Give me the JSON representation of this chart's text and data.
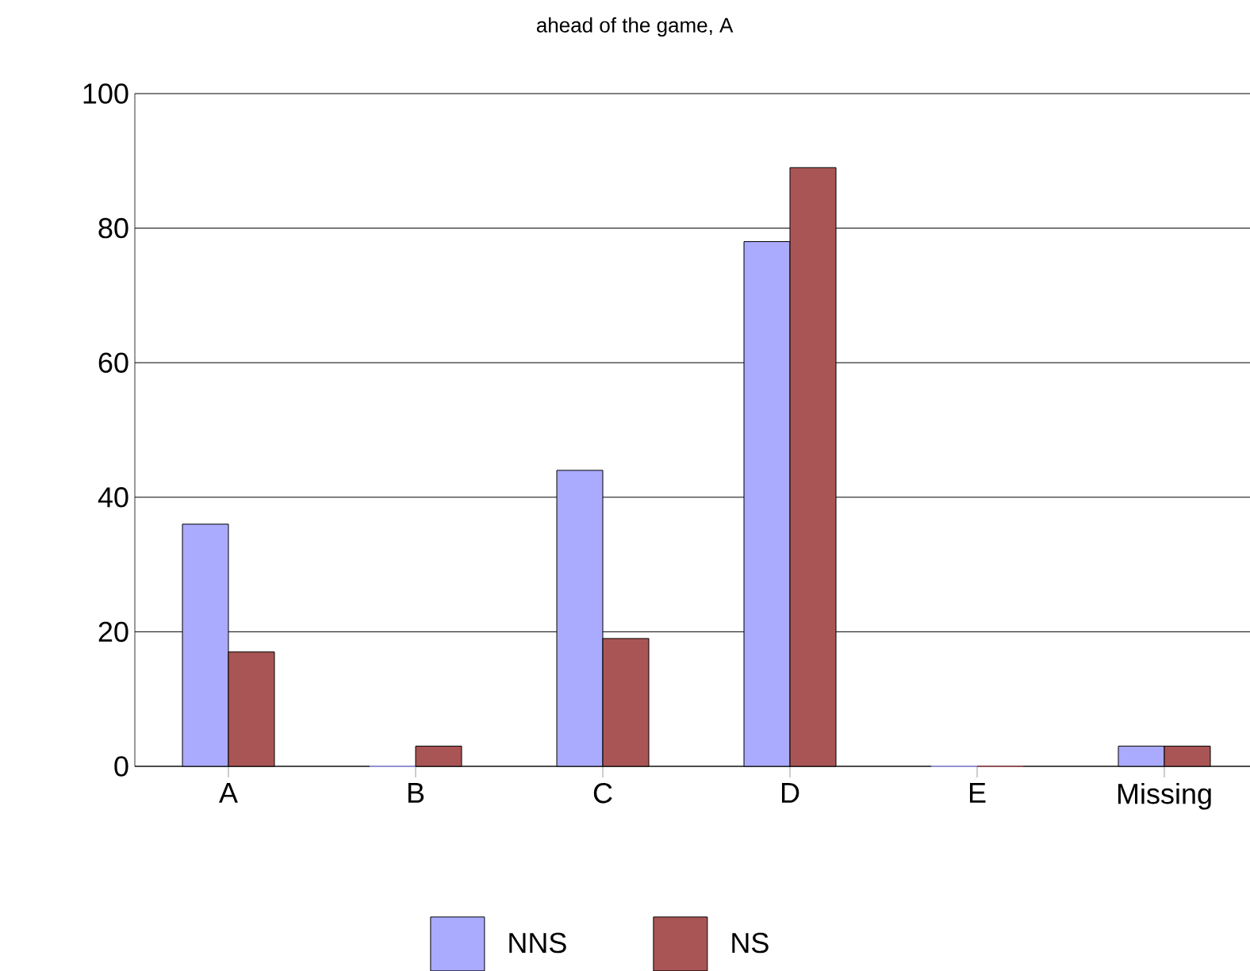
{
  "chart_data": {
    "type": "bar",
    "title": "ahead of the game, A",
    "categories": [
      "A",
      "B",
      "C",
      "D",
      "E",
      "Missing"
    ],
    "series": [
      {
        "name": "NNS",
        "color": "#aaaaff",
        "values": [
          36,
          0,
          44,
          78,
          0,
          3
        ]
      },
      {
        "name": "NS",
        "color": "#aa5555",
        "values": [
          17,
          3,
          19,
          89,
          0,
          3
        ]
      }
    ],
    "ylim": [
      0,
      100
    ],
    "yticks": [
      0,
      20,
      40,
      60,
      80,
      100
    ],
    "grid": "y",
    "legend": "bottom"
  }
}
